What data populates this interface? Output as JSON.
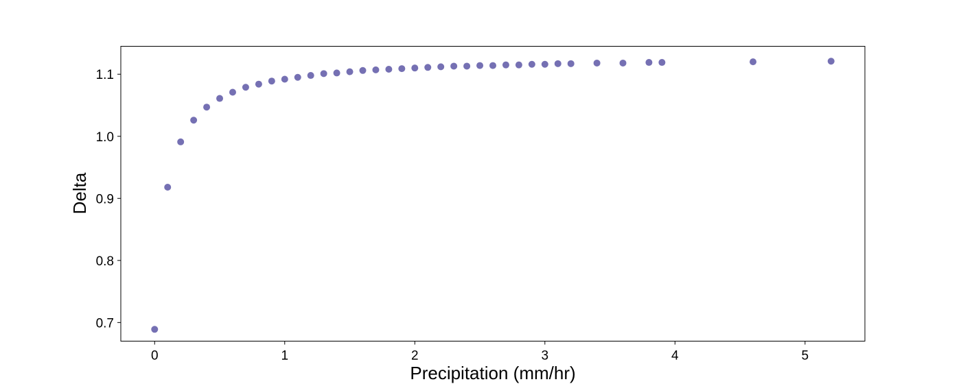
{
  "chart_data": {
    "type": "scatter",
    "title": "",
    "xlabel": "Precipitation (mm/hr)",
    "ylabel": "Delta",
    "xlim": [
      -0.26,
      5.46
    ],
    "ylim": [
      0.67,
      1.145
    ],
    "xticks": [
      0,
      1,
      2,
      3,
      4,
      5
    ],
    "yticks": [
      0.7,
      0.8,
      0.9,
      1.0,
      1.1
    ],
    "xtick_labels": [
      "0",
      "1",
      "2",
      "3",
      "4",
      "5"
    ],
    "ytick_labels": [
      "0.7",
      "0.8",
      "0.9",
      "1.0",
      "1.1"
    ],
    "grid": false,
    "legend": "none",
    "marker_color": "#7570b3",
    "points": [
      {
        "x": 0.0,
        "y": 0.689
      },
      {
        "x": 0.1,
        "y": 0.918
      },
      {
        "x": 0.2,
        "y": 0.991
      },
      {
        "x": 0.3,
        "y": 1.026
      },
      {
        "x": 0.4,
        "y": 1.047
      },
      {
        "x": 0.5,
        "y": 1.061
      },
      {
        "x": 0.6,
        "y": 1.071
      },
      {
        "x": 0.7,
        "y": 1.079
      },
      {
        "x": 0.8,
        "y": 1.084
      },
      {
        "x": 0.9,
        "y": 1.089
      },
      {
        "x": 1.0,
        "y": 1.092
      },
      {
        "x": 1.1,
        "y": 1.095
      },
      {
        "x": 1.2,
        "y": 1.098
      },
      {
        "x": 1.3,
        "y": 1.101
      },
      {
        "x": 1.4,
        "y": 1.102
      },
      {
        "x": 1.5,
        "y": 1.104
      },
      {
        "x": 1.6,
        "y": 1.106
      },
      {
        "x": 1.7,
        "y": 1.107
      },
      {
        "x": 1.8,
        "y": 1.108
      },
      {
        "x": 1.9,
        "y": 1.109
      },
      {
        "x": 2.0,
        "y": 1.11
      },
      {
        "x": 2.1,
        "y": 1.111
      },
      {
        "x": 2.2,
        "y": 1.112
      },
      {
        "x": 2.3,
        "y": 1.113
      },
      {
        "x": 2.4,
        "y": 1.113
      },
      {
        "x": 2.5,
        "y": 1.114
      },
      {
        "x": 2.6,
        "y": 1.114
      },
      {
        "x": 2.7,
        "y": 1.115
      },
      {
        "x": 2.8,
        "y": 1.115
      },
      {
        "x": 2.9,
        "y": 1.116
      },
      {
        "x": 3.0,
        "y": 1.116
      },
      {
        "x": 3.1,
        "y": 1.117
      },
      {
        "x": 3.2,
        "y": 1.117
      },
      {
        "x": 3.4,
        "y": 1.118
      },
      {
        "x": 3.6,
        "y": 1.118
      },
      {
        "x": 3.8,
        "y": 1.119
      },
      {
        "x": 3.9,
        "y": 1.119
      },
      {
        "x": 4.6,
        "y": 1.12
      },
      {
        "x": 5.2,
        "y": 1.121
      }
    ]
  }
}
